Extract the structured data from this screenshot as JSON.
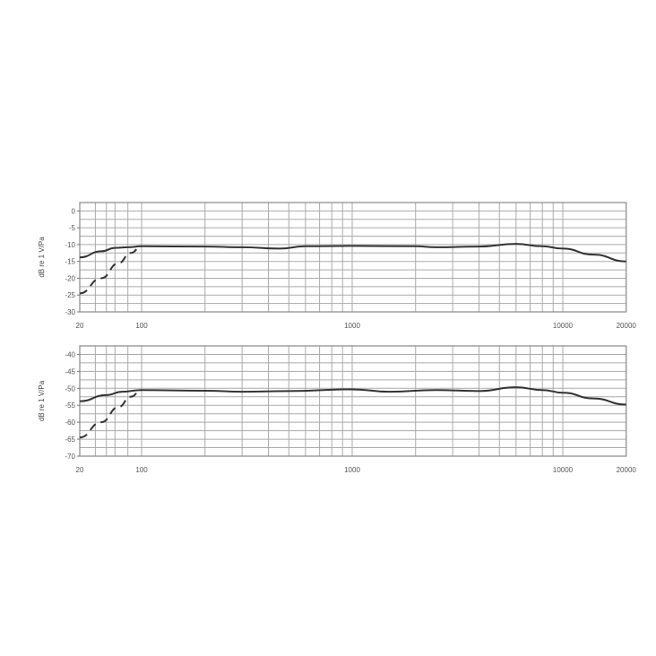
{
  "chart_data": [
    {
      "type": "line",
      "ylabel": "dB re 1 V/Pa",
      "xscale": "log",
      "xlim": [
        20,
        20000
      ],
      "ylim": [
        -30,
        2.5
      ],
      "grid": true,
      "xticks": [
        20,
        100,
        1000,
        10000,
        20000
      ],
      "xtick_labels": [
        "20",
        "100",
        "1000",
        "10000",
        "20000"
      ],
      "yticks": [
        0,
        -5,
        -10,
        -15,
        -20,
        -25,
        -30
      ],
      "ytick_labels": [
        "0",
        "-5",
        "-10",
        "-15",
        "-20",
        "-25",
        "-30"
      ],
      "series": [
        {
          "style": "solid",
          "color": "#333333",
          "x": [
            20,
            35,
            50,
            70,
            100,
            200,
            300,
            450,
            600,
            1000,
            2000,
            2500,
            4000,
            6000,
            8000,
            10000,
            14000,
            20000
          ],
          "y": [
            -13.8,
            -12,
            -11,
            -10.8,
            -10.5,
            -10.6,
            -10.8,
            -11.2,
            -10.5,
            -10.4,
            -10.5,
            -10.8,
            -10.6,
            -9.8,
            -10.5,
            -11.2,
            -13,
            -15
          ]
        },
        {
          "style": "dashed",
          "color": "#333333",
          "x": [
            20,
            35,
            55,
            75,
            100
          ],
          "y": [
            -24.5,
            -20,
            -15.5,
            -12.5,
            -10.5
          ]
        }
      ]
    },
    {
      "type": "line",
      "ylabel": "dB re 1 V/Pa",
      "xscale": "log",
      "xlim": [
        20,
        20000
      ],
      "ylim": [
        -70,
        -37.5
      ],
      "grid": true,
      "xticks": [
        20,
        100,
        1000,
        10000,
        20000
      ],
      "xtick_labels": [
        "20",
        "100",
        "1000",
        "10000",
        "20000"
      ],
      "yticks": [
        -40,
        -45,
        -50,
        -55,
        -60,
        -65,
        -70
      ],
      "ytick_labels": [
        "-40",
        "-45",
        "-50",
        "-55",
        "-60",
        "-65",
        "-70"
      ],
      "series": [
        {
          "style": "solid",
          "color": "#333333",
          "x": [
            20,
            40,
            60,
            100,
            200,
            300,
            500,
            1000,
            1500,
            2500,
            4000,
            6000,
            8000,
            10000,
            14000,
            20000
          ],
          "y": [
            -53.8,
            -52,
            -51,
            -50.5,
            -50.7,
            -51,
            -50.8,
            -50.3,
            -51,
            -50.5,
            -50.8,
            -49.7,
            -50.5,
            -51.3,
            -53,
            -54.8
          ]
        },
        {
          "style": "dashed",
          "color": "#333333",
          "x": [
            20,
            35,
            55,
            75,
            100
          ],
          "y": [
            -64.5,
            -60,
            -55.5,
            -52.5,
            -50.5
          ]
        }
      ]
    }
  ]
}
